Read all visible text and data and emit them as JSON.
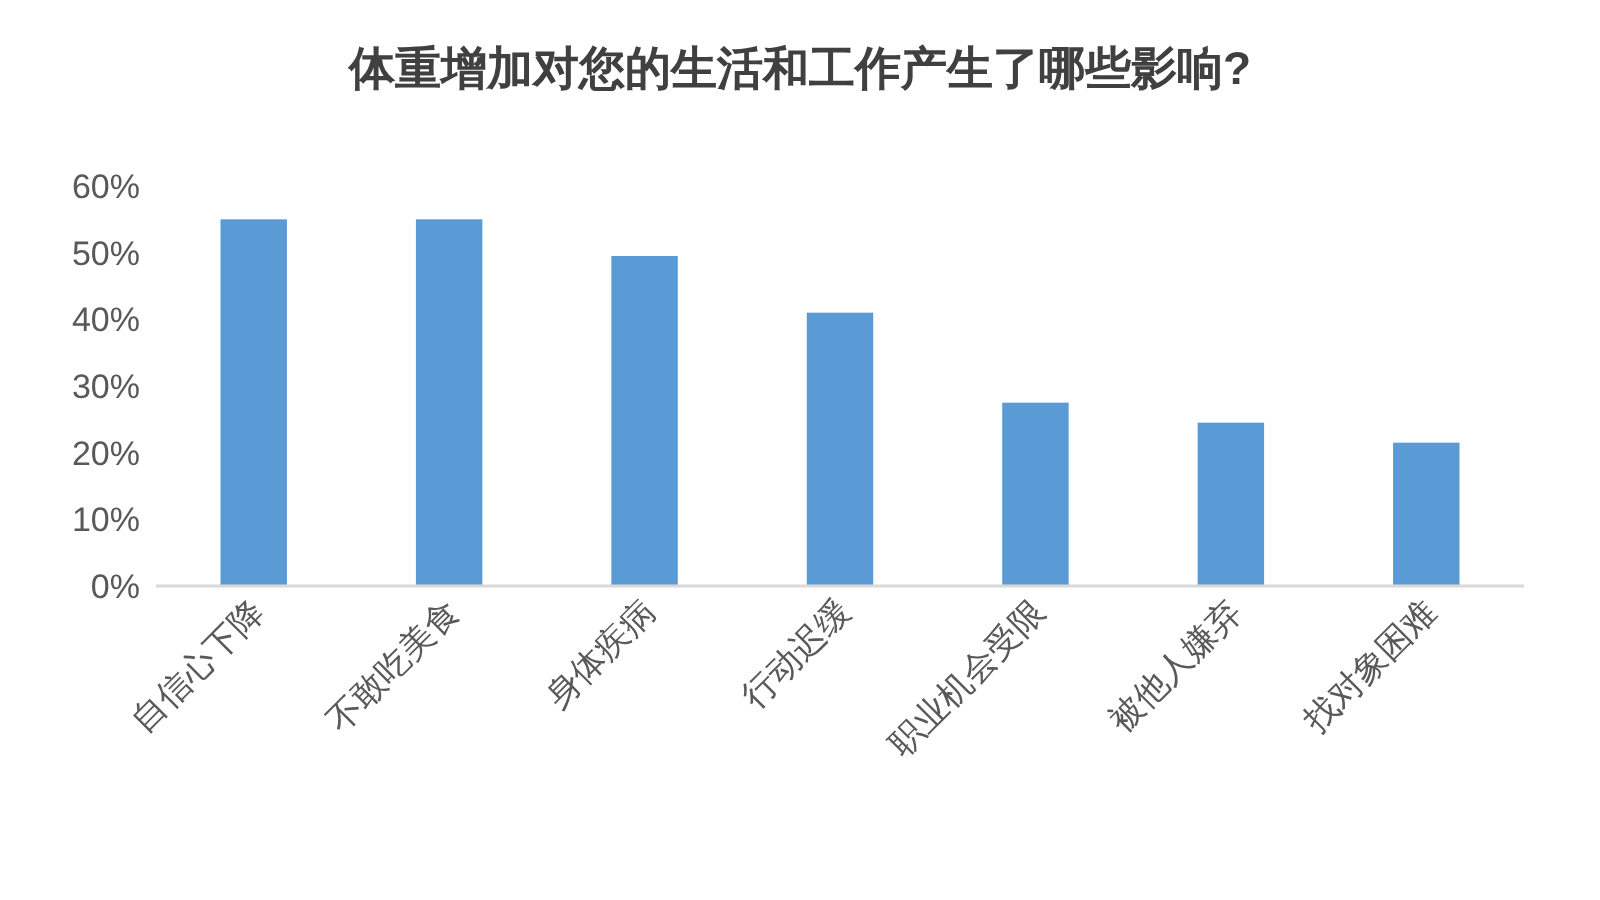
{
  "chart_data": {
    "type": "bar",
    "title": "体重增加对您的生活和工作产生了哪些影响?",
    "categories": [
      "自信心下降",
      "不敢吃美食",
      "身体疾病",
      "行动迟缓",
      "职业机会受限",
      "被他人嫌弃",
      "找对象困难"
    ],
    "values": [
      55,
      55,
      49.5,
      41,
      27.5,
      24.5,
      21.5
    ],
    "color": "#5b9bd5",
    "ylim": [
      0,
      60
    ],
    "yticks": [
      {
        "value": 0,
        "label": "0%"
      },
      {
        "value": 10,
        "label": "10%"
      },
      {
        "value": 20,
        "label": "20%"
      },
      {
        "value": 30,
        "label": "30%"
      },
      {
        "value": 40,
        "label": "40%"
      },
      {
        "value": 50,
        "label": "50%"
      },
      {
        "value": 60,
        "label": "60%"
      }
    ],
    "grid": false
  }
}
